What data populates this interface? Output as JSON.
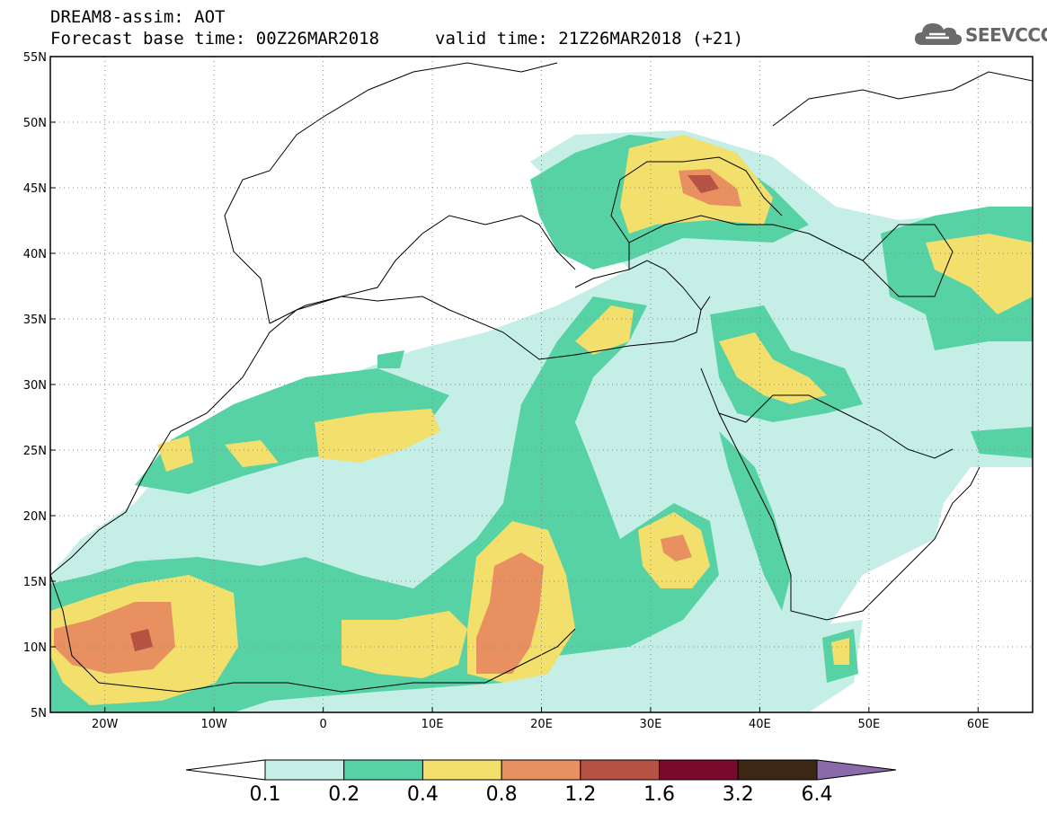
{
  "header": {
    "line1": "DREAM8-assim: AOT",
    "line2": "Forecast base time: 00Z26MAR2018",
    "valid": "valid time: 21Z26MAR2018 (+21)"
  },
  "logo": {
    "text": "SEEVCCC",
    "icon": "cloud-icon"
  },
  "map": {
    "lat_ticks": [
      "55N",
      "50N",
      "45N",
      "40N",
      "35N",
      "30N",
      "25N",
      "20N",
      "15N",
      "10N",
      "5N"
    ],
    "lon_ticks": [
      "20W",
      "10W",
      "0",
      "10E",
      "20E",
      "30E",
      "40E",
      "50E",
      "60E"
    ],
    "lat_range": [
      5,
      55
    ],
    "lon_range": [
      -25,
      65
    ],
    "grid": "dotted"
  },
  "colorbar": {
    "labels": [
      "0.1",
      "0.2",
      "0.4",
      "0.8",
      "1.2",
      "1.6",
      "3.2",
      "6.4"
    ],
    "colors": [
      "#c5efe6",
      "#56d2a5",
      "#f3df6c",
      "#e8905f",
      "#b65243",
      "#7a0a2c",
      "#3c2614",
      "#8a6aa8"
    ]
  },
  "colors": {
    "c1": "#c5efe6",
    "c2": "#56d2a5",
    "c3": "#f3df6c",
    "c4": "#e8905f",
    "c5": "#b65243",
    "c6": "#7a0a2c"
  }
}
